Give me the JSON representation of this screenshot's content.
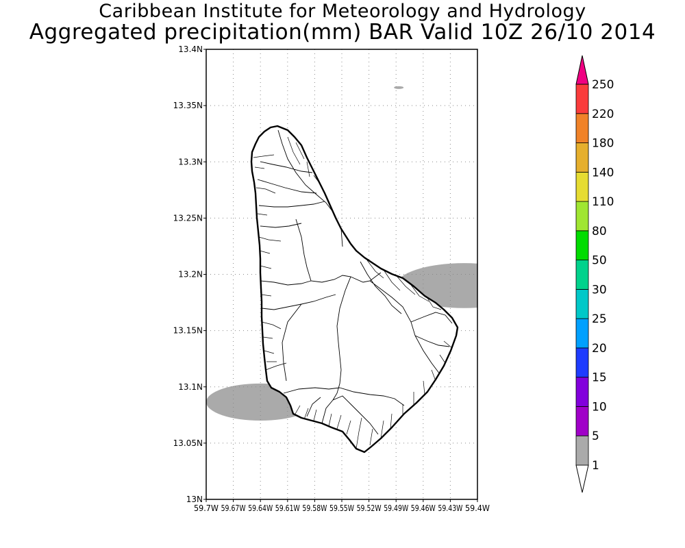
{
  "header": {
    "title_line1": "Caribbean Institute for Meteorology and Hydrology",
    "title_line2": "Aggregated precipitation(mm) BAR Valid 10Z 26/10 2014"
  },
  "map": {
    "region": "Barbados",
    "lon_range": [
      -59.7,
      -59.4
    ],
    "lat_range": [
      13.0,
      13.4
    ],
    "grid": true,
    "lat_ticks": [
      {
        "value": 13.0,
        "label": "13N"
      },
      {
        "value": 13.05,
        "label": "13.05N"
      },
      {
        "value": 13.1,
        "label": "13.1N"
      },
      {
        "value": 13.15,
        "label": "13.15N"
      },
      {
        "value": 13.2,
        "label": "13.2N"
      },
      {
        "value": 13.25,
        "label": "13.25N"
      },
      {
        "value": 13.3,
        "label": "13.3N"
      },
      {
        "value": 13.35,
        "label": "13.35N"
      },
      {
        "value": 13.4,
        "label": "13.4N"
      }
    ],
    "lon_ticks": [
      {
        "value": -59.7,
        "label": "59.7W"
      },
      {
        "value": -59.67,
        "label": "59.67W"
      },
      {
        "value": -59.64,
        "label": "59.64W"
      },
      {
        "value": -59.61,
        "label": "59.61W"
      },
      {
        "value": -59.58,
        "label": "59.58W"
      },
      {
        "value": -59.55,
        "label": "59.55W"
      },
      {
        "value": -59.52,
        "label": "59.52W"
      },
      {
        "value": -59.49,
        "label": "59.49W"
      },
      {
        "value": -59.46,
        "label": "59.46W"
      },
      {
        "value": -59.43,
        "label": "59.43W"
      },
      {
        "value": -59.4,
        "label": "59.4W"
      }
    ],
    "precip_areas": [
      {
        "name": "west-coast-rain-area",
        "range_mm": "1-5",
        "lon_min": -59.7,
        "lon_max": -59.58,
        "lat_min": 13.07,
        "lat_max": 13.103
      },
      {
        "name": "east-coast-rain-area",
        "range_mm": "1-5",
        "lon_min": -59.49,
        "lon_max": -59.4,
        "lat_min": 13.17,
        "lat_max": 13.21
      },
      {
        "name": "offshore-rain-speck",
        "range_mm": "1-5",
        "lon": -59.487,
        "lat": 13.366
      }
    ]
  },
  "colorbar": {
    "levels": [
      {
        "label": "1",
        "color": "#aaaaaa"
      },
      {
        "label": "5",
        "color": "#a000c8"
      },
      {
        "label": "10",
        "color": "#8200dc"
      },
      {
        "label": "15",
        "color": "#1e3cff"
      },
      {
        "label": "20",
        "color": "#00a0ff"
      },
      {
        "label": "25",
        "color": "#00c8c8"
      },
      {
        "label": "30",
        "color": "#00d28c"
      },
      {
        "label": "50",
        "color": "#00dc00"
      },
      {
        "label": "80",
        "color": "#a0e632"
      },
      {
        "label": "110",
        "color": "#e6dc32"
      },
      {
        "label": "140",
        "color": "#e6af2d"
      },
      {
        "label": "180",
        "color": "#f08228"
      },
      {
        "label": "220",
        "color": "#fa3c3c"
      },
      {
        "label": "250",
        "color": "#f00082"
      }
    ],
    "below_color": "#ffffff",
    "above_color": "#f00082"
  }
}
